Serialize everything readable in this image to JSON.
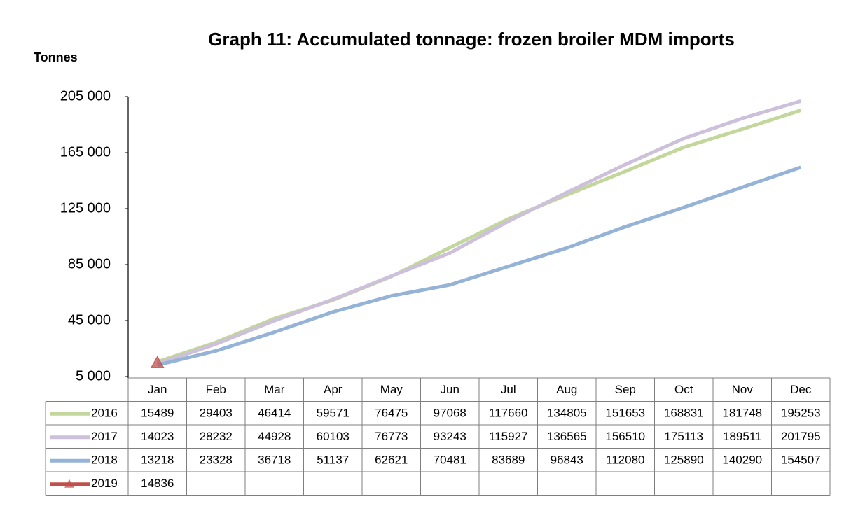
{
  "chart_data": {
    "type": "line",
    "title": "Graph 11: Accumulated tonnage: frozen broiler MDM imports",
    "y_label": "Tonnes",
    "categories": [
      "Jan",
      "Feb",
      "Mar",
      "Apr",
      "May",
      "Jun",
      "Jul",
      "Aug",
      "Sep",
      "Oct",
      "Nov",
      "Dec"
    ],
    "series": [
      {
        "name": "2016",
        "color": "#c3d69b",
        "values": [
          15489,
          29403,
          46414,
          59571,
          76475,
          97068,
          117660,
          134805,
          151653,
          168831,
          181748,
          195253
        ]
      },
      {
        "name": "2017",
        "color": "#ccc0da",
        "values": [
          14023,
          28232,
          44928,
          60103,
          76773,
          93243,
          115927,
          136565,
          156510,
          175113,
          189511,
          201795
        ]
      },
      {
        "name": "2018",
        "color": "#95b3d7",
        "values": [
          13218,
          23328,
          36718,
          51137,
          62621,
          70481,
          83689,
          96843,
          112080,
          125890,
          140290,
          154507
        ]
      },
      {
        "name": "2019",
        "color": "#c0504d",
        "marker": "triangle",
        "values": [
          14836,
          null,
          null,
          null,
          null,
          null,
          null,
          null,
          null,
          null,
          null,
          null
        ]
      }
    ],
    "ylim": [
      5000,
      205000
    ],
    "yticks": [
      {
        "value": 5000,
        "label": "5 000"
      },
      {
        "value": 45000,
        "label": "45 000"
      },
      {
        "value": 85000,
        "label": "85 000"
      },
      {
        "value": 125000,
        "label": "125 000"
      },
      {
        "value": 165000,
        "label": "165 000"
      },
      {
        "value": 205000,
        "label": "205 000"
      }
    ],
    "grid": false,
    "data_table": true
  }
}
